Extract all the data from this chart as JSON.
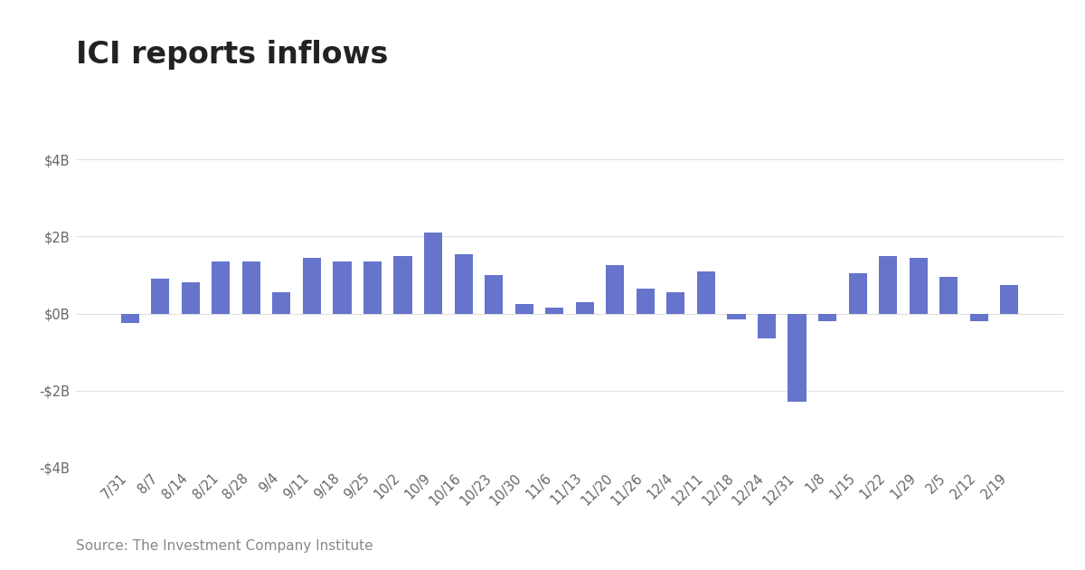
{
  "title": "ICI reports inflows",
  "source": "Source: The Investment Company Institute",
  "bar_color": "#6674cc",
  "background_color": "#ffffff",
  "categories": [
    "7/31",
    "8/7",
    "8/14",
    "8/21",
    "8/28",
    "9/4",
    "9/11",
    "9/18",
    "9/25",
    "10/2",
    "10/9",
    "10/16",
    "10/23",
    "10/30",
    "11/6",
    "11/13",
    "11/20",
    "11/26",
    "12/4",
    "12/11",
    "12/18",
    "12/24",
    "12/31",
    "1/8",
    "1/15",
    "1/22",
    "1/29",
    "2/5",
    "2/12",
    "2/19"
  ],
  "values": [
    -0.25,
    0.9,
    0.8,
    1.35,
    1.35,
    0.55,
    1.45,
    1.35,
    1.35,
    1.5,
    2.1,
    1.55,
    1.0,
    0.25,
    0.15,
    0.3,
    1.25,
    0.65,
    0.55,
    1.1,
    -0.15,
    -0.65,
    -2.3,
    -0.2,
    1.05,
    1.5,
    1.45,
    0.95,
    -0.2,
    0.75
  ],
  "ylim": [
    -4,
    4
  ],
  "yticks": [
    -4,
    -2,
    0,
    2,
    4
  ],
  "ytick_labels": [
    "-$4B",
    "-$2B",
    "$0B",
    "$2B",
    "$4B"
  ],
  "grid_color": "#e0e0e0",
  "title_fontsize": 24,
  "tick_fontsize": 10.5,
  "source_fontsize": 11,
  "bar_width": 0.6
}
